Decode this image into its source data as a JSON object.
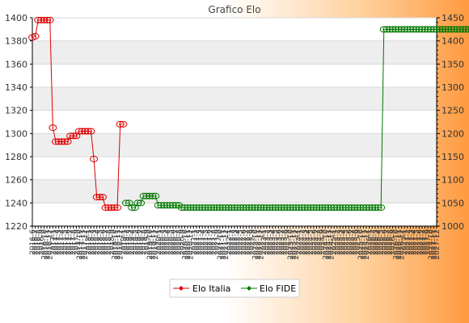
{
  "chart_data": {
    "type": "line",
    "title": "Grafico Elo",
    "xlabel": "",
    "ylabel": "",
    "ylim": [
      1220,
      1400
    ],
    "y2lim": [
      1000,
      1450
    ],
    "yticks": [
      1220,
      1240,
      1260,
      1280,
      1300,
      1320,
      1340,
      1360,
      1380,
      1400
    ],
    "y2ticks": [
      1000,
      1050,
      1100,
      1150,
      1200,
      1250,
      1300,
      1350,
      1400,
      1450
    ],
    "x_tick_labels": [
      "2016-6",
      "2016-7",
      "2016-8",
      "2016-9",
      "2016-10",
      "2016-11",
      "2016-12",
      "2017-1",
      "2017-2",
      "2017-3",
      "2017-4",
      "2017-5",
      "2017-6",
      "2017-7",
      "2017-8",
      "2017-9",
      "2017-10",
      "2017-11",
      "2017-12",
      "2018-1",
      "2018-2",
      "2018-3",
      "2018-4",
      "2018-5",
      "2018-6",
      "2018-7",
      "2018-8",
      "2018-9",
      "2018-10",
      "2018-11",
      "2018-12",
      "2019-1",
      "2019-2",
      "2019-3",
      "2019-4",
      "2019-5",
      "2019-6",
      "2019-7",
      "2019-8",
      "2019-9",
      "2019-10",
      "2019-11",
      "2019-12",
      "2020-1",
      "2020-2",
      "2020-3",
      "2020-4",
      "2020-5",
      "2020-6",
      "2020-7",
      "2020-8",
      "2020-9",
      "2020-10",
      "2020-11",
      "2020-12",
      "2021-1",
      "2021-2",
      "2021-3",
      "2021-4",
      "2021-5",
      "2021-6",
      "2021-7",
      "2021-8",
      "2021-9",
      "2021-10",
      "2021-11",
      "2021-12",
      "2022-1",
      "2022-2",
      "2022-3",
      "2022-4",
      "2022-5",
      "2022-6",
      "2022-7",
      "2022-8",
      "2022-9",
      "2022-10",
      "2022-11",
      "2022-12",
      "2023-1",
      "2023-2",
      "2023-3",
      "2023-4",
      "2023-5",
      "2023-6",
      "2023-7",
      "2023-8",
      "2023-9",
      "2023-10",
      "2023-11",
      "2023-12",
      "2024-1",
      "2024-2",
      "2024-3",
      "2024-4",
      "2024-5",
      "2024-6",
      "2024-7",
      "2024-8",
      "2024-9",
      "2024-10",
      "2024-11",
      "2024-12",
      "2025-1",
      "2025-2",
      "2025-3",
      "2025-4",
      "2025-5",
      "2025-6",
      "2025-7",
      "2025-8",
      "2025-9",
      "2025-10",
      "2025-11",
      "2025-12",
      "2026-1",
      "2026-2",
      "2026-3",
      "2026-4",
      "2026-5",
      "2026-6",
      "2026-7",
      "2026-8",
      "2026-9",
      "2026-10",
      "2026-11",
      "2026-12",
      "2027-1",
      "2027-2",
      "2027-3",
      "2027-4",
      "2027-5",
      "2027-6",
      "2027-7",
      "2027-8",
      "2027-9",
      "2027-10",
      "2027-11",
      "2027-12"
    ],
    "series": [
      {
        "name": "Elo Italia",
        "axis": "left",
        "color": "#dd0000",
        "values": [
          1383,
          1384,
          1398,
          1398,
          1398,
          1398,
          1398,
          1305,
          1293,
          1293,
          1293,
          1293,
          1293,
          1298,
          1298,
          1298,
          1302,
          1302,
          1302,
          1302,
          1302,
          1278,
          1245,
          1245,
          1245,
          1236,
          1236,
          1236,
          1236,
          1236,
          1308,
          1308
        ]
      },
      {
        "name": "Elo FIDE",
        "axis": "right",
        "color": "#007700",
        "values": [
          null,
          null,
          null,
          null,
          null,
          null,
          null,
          null,
          null,
          null,
          null,
          null,
          null,
          null,
          null,
          null,
          null,
          null,
          null,
          null,
          null,
          null,
          null,
          null,
          null,
          null,
          null,
          null,
          null,
          null,
          null,
          null,
          1050,
          1050,
          1040,
          1040,
          1050,
          1050,
          1065,
          1065,
          1065,
          1065,
          1065,
          1045,
          1045,
          1045,
          1045,
          1045,
          1045,
          1045,
          1045,
          1040,
          1040,
          1040,
          1040,
          1040,
          1040,
          1040,
          1040,
          1040,
          1040,
          1040,
          1040,
          1040,
          1040,
          1040,
          1040,
          1040,
          1040,
          1040,
          1040,
          1040,
          1040,
          1040,
          1040,
          1040,
          1040,
          1040,
          1040,
          1040,
          1040,
          1040,
          1040,
          1040,
          1040,
          1040,
          1040,
          1040,
          1040,
          1040,
          1040,
          1040,
          1040,
          1040,
          1040,
          1040,
          1040,
          1040,
          1040,
          1040,
          1040,
          1040,
          1040,
          1040,
          1040,
          1040,
          1040,
          1040,
          1040,
          1040,
          1040,
          1040,
          1040,
          1040,
          1040,
          1040,
          1040,
          1040,
          1040,
          1040,
          1425,
          1425,
          1425,
          1425,
          1425,
          1425,
          1425,
          1425,
          1425,
          1425,
          1425,
          1425,
          1425,
          1425,
          1425,
          1425,
          1425,
          1425,
          1425,
          1425,
          1425,
          1425,
          1425,
          1425,
          1425,
          1425,
          1425,
          1425,
          1425,
          1425,
          1425,
          1425,
          1425
        ]
      }
    ],
    "legend_position": "bottom",
    "grid": true
  }
}
